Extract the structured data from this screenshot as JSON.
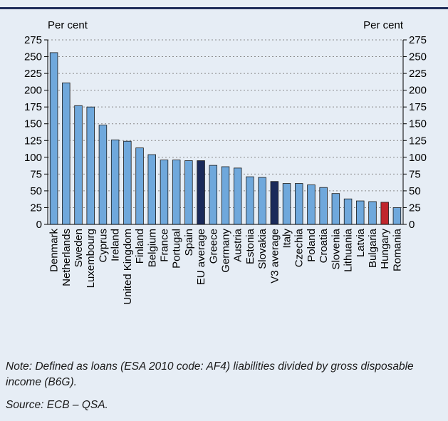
{
  "chart_data": {
    "type": "bar",
    "left_axis_label": "Per cent",
    "right_axis_label": "Per cent",
    "ylim": [
      0,
      275
    ],
    "yticks": [
      0,
      25,
      50,
      75,
      100,
      125,
      150,
      175,
      200,
      225,
      250,
      275
    ],
    "grid": "horizontal dotted",
    "categories": [
      "Denmark",
      "Netherlands",
      "Sweden",
      "Luxembourg",
      "Cyprus",
      "Ireland",
      "United Kingdom",
      "Finland",
      "Belgium",
      "France",
      "Portugal",
      "Spain",
      "EU average",
      "Greece",
      "Germany",
      "Austria",
      "Estonia",
      "Slovakia",
      "V3 average",
      "Italy",
      "Czechia",
      "Poland",
      "Croatia",
      "Slovenia",
      "Lithuania",
      "Latvia",
      "Bulgaria",
      "Hungary",
      "Romania"
    ],
    "values": [
      256,
      211,
      177,
      175,
      148,
      126,
      124,
      114,
      104,
      96,
      96,
      95,
      95,
      88,
      86,
      84,
      71,
      70,
      64,
      61,
      61,
      59,
      55,
      46,
      38,
      35,
      34,
      33,
      25
    ],
    "colors": {
      "default": "#6fa8dc",
      "average": "#1a2a5a",
      "highlight": "#c0262d"
    },
    "highlight_categories": {
      "EU average": "average",
      "V3 average": "average",
      "Hungary": "highlight"
    }
  },
  "note": "Note: Defined as loans (ESA 2010 code: AF4) liabilities divided by gross disposable income (B6G).",
  "source": "Source: ECB – QSA."
}
